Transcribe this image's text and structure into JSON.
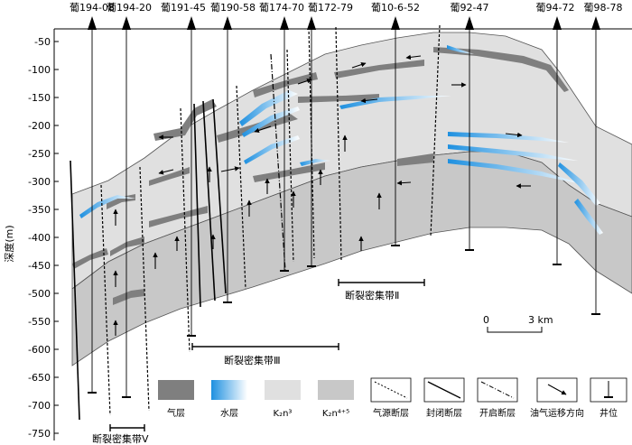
{
  "y_axis": {
    "label": "深度(m)",
    "ticks": [
      "-50",
      "-100",
      "-150",
      "-200",
      "-250",
      "-300",
      "-350",
      "-400",
      "-450",
      "-500",
      "-550",
      "-600",
      "-650",
      "-700",
      "-750"
    ]
  },
  "wells": [
    "葡194-08",
    "葡194-20",
    "葡191-45",
    "葡190-58",
    "葡174-70",
    "葡172-79",
    "葡10-6-52",
    "葡92-47",
    "葡94-72",
    "葡98-78"
  ],
  "fault_zones": {
    "zone_2": "断裂密集带Ⅱ",
    "zone_3": "断裂密集带Ⅲ",
    "zone_5": "断裂密集带Ⅴ"
  },
  "scale_bar": {
    "start": "0",
    "end": "3 km"
  },
  "legend": [
    {
      "label": "气层",
      "color": "#7f7f7f",
      "icon": "gas-layer-swatch"
    },
    {
      "label": "水层",
      "color": "#29a3e6",
      "icon": "water-layer-swatch"
    },
    {
      "label": "K₂n³",
      "color": "#e0e0e0",
      "icon": "k2n3-swatch"
    },
    {
      "label": "K₂n⁴⁺⁵",
      "color": "#c8c8c8",
      "icon": "k2n45-swatch"
    },
    {
      "label": "气源断层",
      "icon": "source-fault-icon"
    },
    {
      "label": "封闭断层",
      "icon": "sealed-fault-icon"
    },
    {
      "label": "开启断层",
      "icon": "open-fault-icon"
    },
    {
      "label": "油气运移方向",
      "icon": "migration-arrow-icon"
    },
    {
      "label": "井位",
      "icon": "well-icon"
    }
  ],
  "colors": {
    "upper_formation": "#e0e0e0",
    "lower_formation": "#c8c8c8",
    "gas": "#7f7f7f",
    "water": "#29a3e6"
  }
}
